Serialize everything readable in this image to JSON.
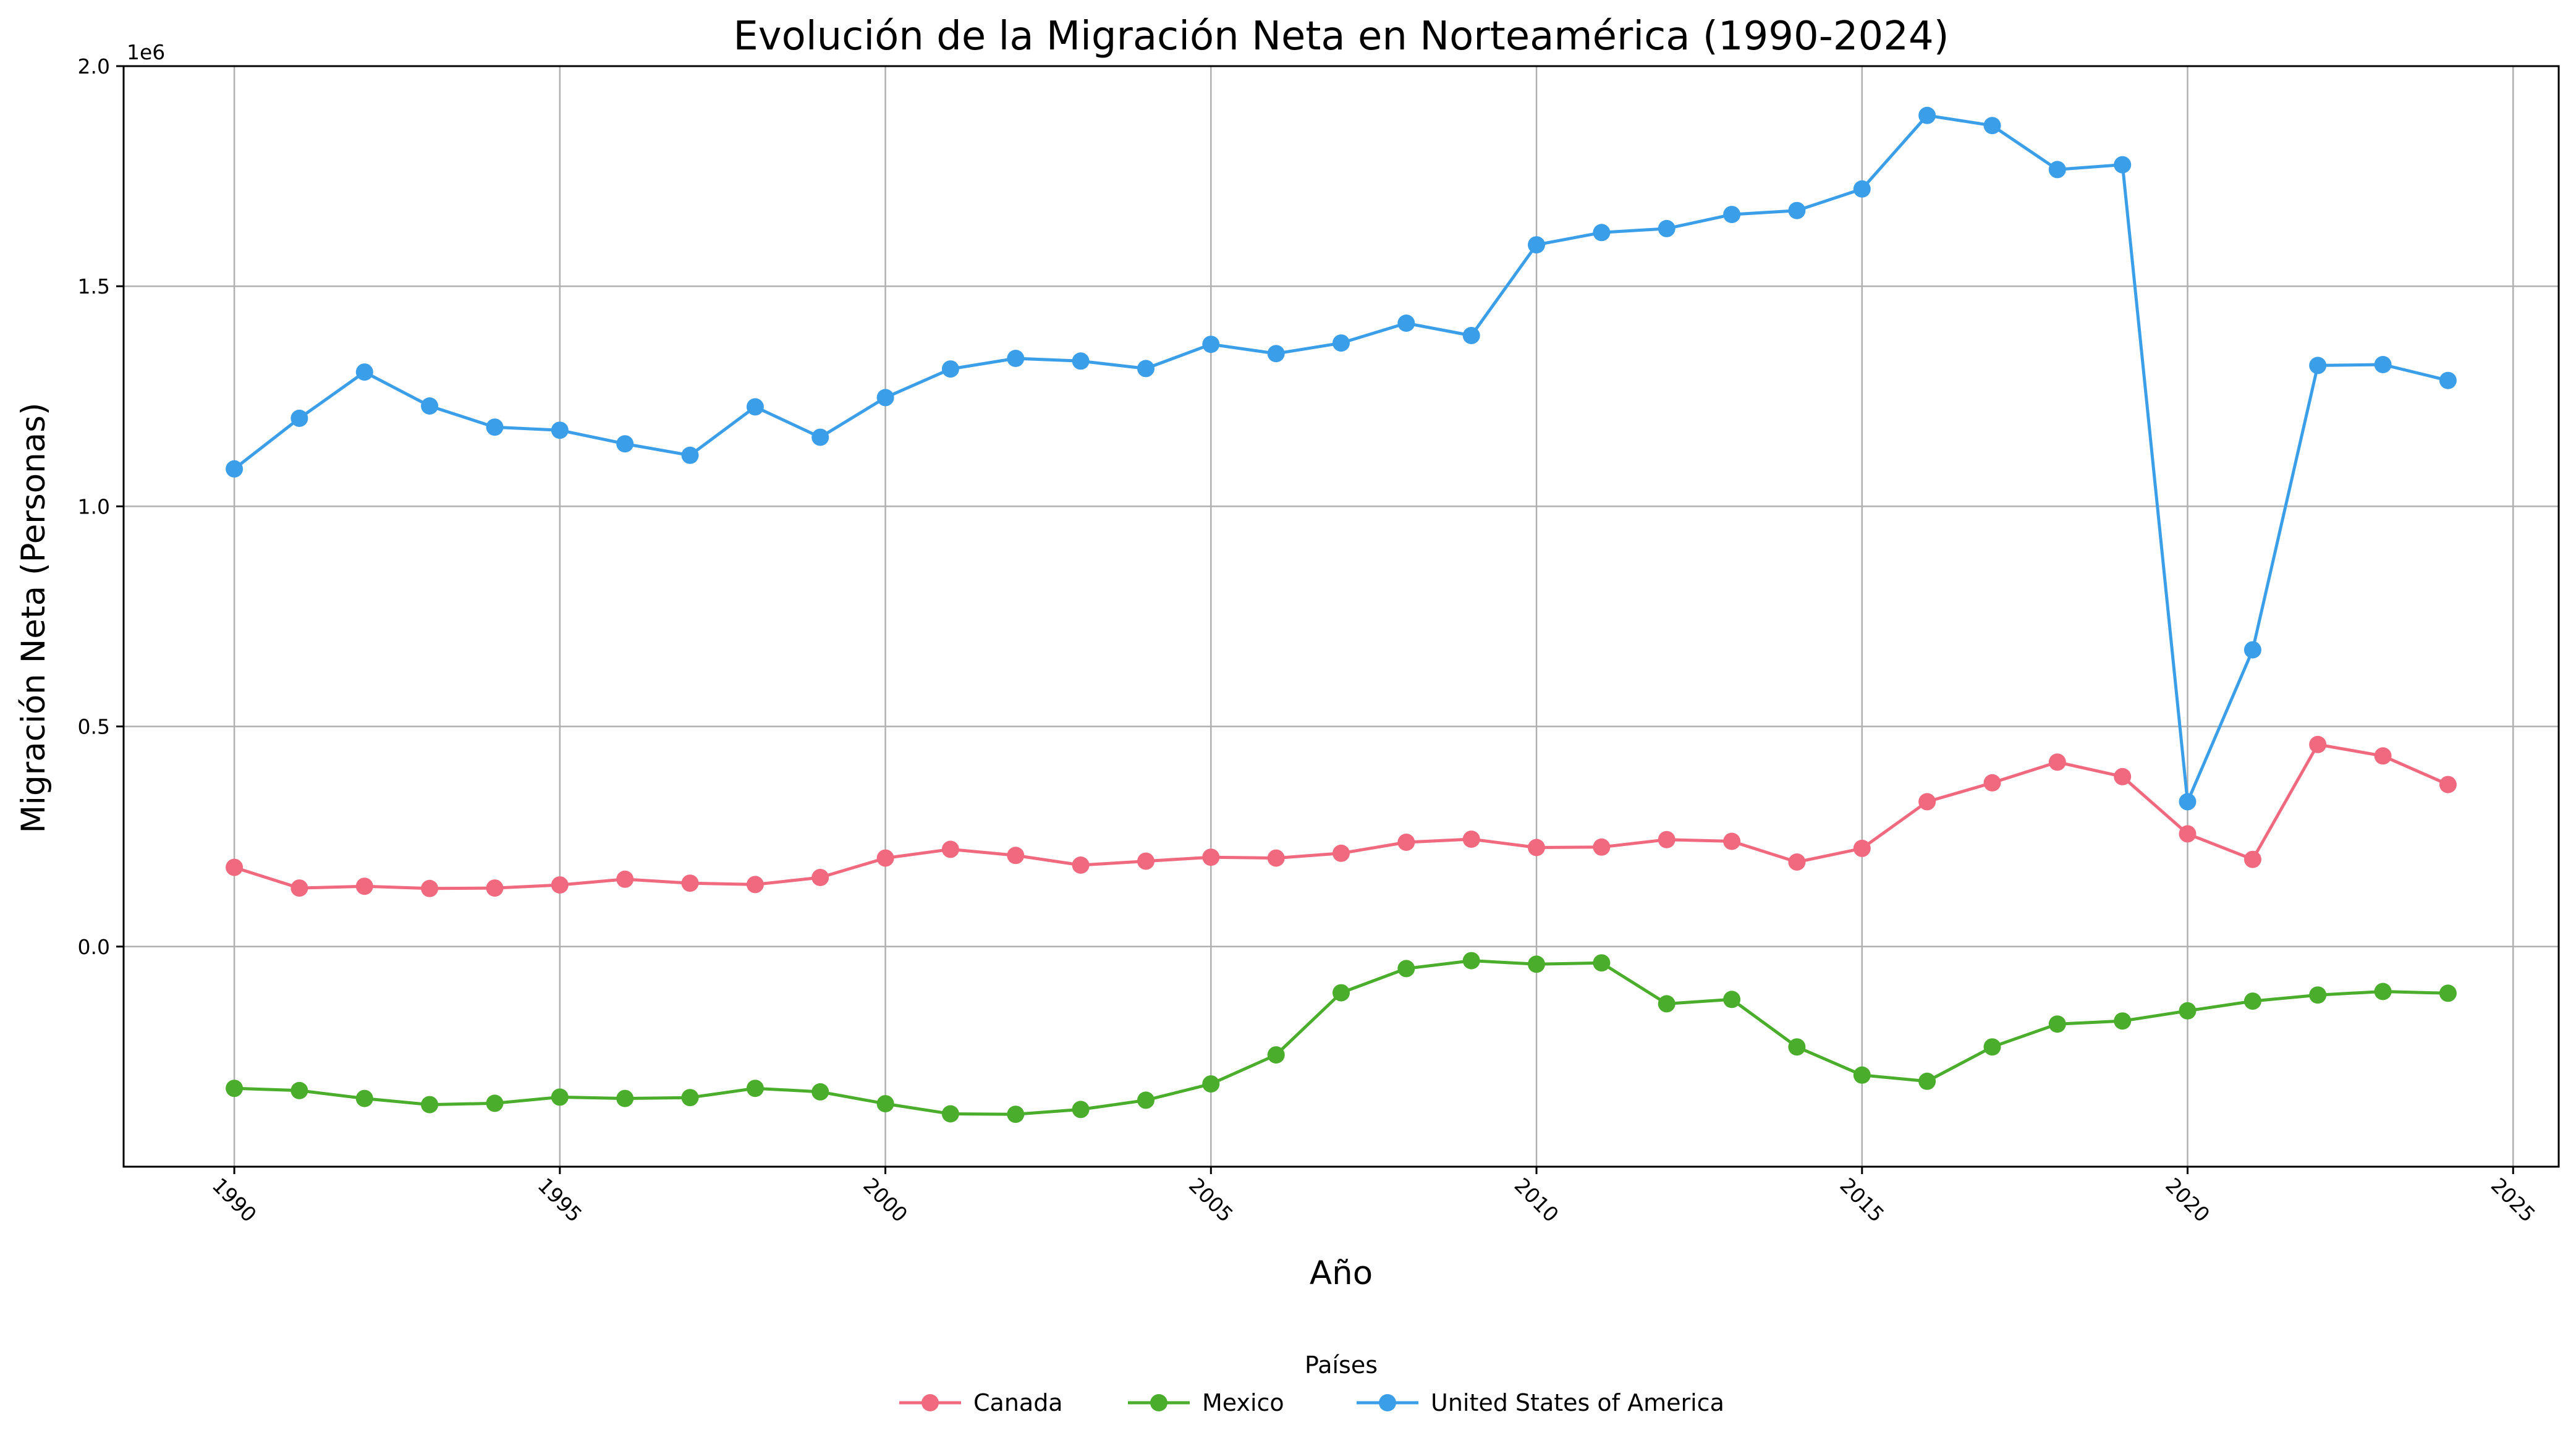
{
  "chart_data": {
    "type": "line",
    "title": "Evolución de la Migración Neta en Norteamérica (1990-2024)",
    "xlabel": "Año",
    "ylabel": "Migración Neta (Personas)",
    "y_offset_label": "1e6",
    "xlim": [
      1988.3,
      2025.7
    ],
    "ylim": [
      -500000,
      2000000
    ],
    "x_ticks": [
      1990,
      1995,
      2000,
      2005,
      2010,
      2015,
      2020,
      2025
    ],
    "y_ticks": [
      0,
      500000,
      1000000,
      1500000,
      2000000
    ],
    "y_tick_labels": [
      "0.0",
      "0.5",
      "1.0",
      "1.5",
      "2.0"
    ],
    "grid": true,
    "legend": {
      "title": "Países",
      "position": "bottom-center",
      "columns": 3
    },
    "x": [
      1990,
      1991,
      1992,
      1993,
      1994,
      1995,
      1996,
      1997,
      1998,
      1999,
      2000,
      2001,
      2002,
      2003,
      2004,
      2005,
      2006,
      2007,
      2008,
      2009,
      2010,
      2011,
      2012,
      2013,
      2014,
      2015,
      2016,
      2017,
      2018,
      2019,
      2020,
      2021,
      2022,
      2023,
      2024
    ],
    "series": [
      {
        "name": "Canada",
        "color": "#f0697f",
        "values": [
          180000,
          133000,
          137000,
          132000,
          133000,
          140000,
          153000,
          144000,
          141000,
          157000,
          201000,
          221000,
          207000,
          185000,
          194000,
          203000,
          201000,
          212000,
          237000,
          244000,
          225000,
          226000,
          243000,
          239000,
          192000,
          223000,
          329000,
          372000,
          419000,
          386000,
          256000,
          198000,
          459000,
          433000,
          368000
        ]
      },
      {
        "name": "Mexico",
        "color": "#4aad2c",
        "values": [
          -322000,
          -327000,
          -345000,
          -359000,
          -356000,
          -342000,
          -345000,
          -343000,
          -322000,
          -330000,
          -357000,
          -380000,
          -381000,
          -370000,
          -349000,
          -312000,
          -246000,
          -105000,
          -50000,
          -32000,
          -40000,
          -37000,
          -130000,
          -120000,
          -228000,
          -292000,
          -306000,
          -228000,
          -176000,
          -169000,
          -146000,
          -124000,
          -110000,
          -102000,
          -106000
        ]
      },
      {
        "name": "United States of America",
        "color": "#3b9ee8",
        "values": [
          1085000,
          1200000,
          1305000,
          1228000,
          1180000,
          1173000,
          1142000,
          1116000,
          1226000,
          1157000,
          1247000,
          1312000,
          1336000,
          1330000,
          1313000,
          1368000,
          1347000,
          1371000,
          1416000,
          1388000,
          1594000,
          1622000,
          1631000,
          1663000,
          1672000,
          1721000,
          1888000,
          1865000,
          1765000,
          1776000,
          329000,
          674000,
          1320000,
          1322000,
          1286000
        ]
      }
    ]
  }
}
